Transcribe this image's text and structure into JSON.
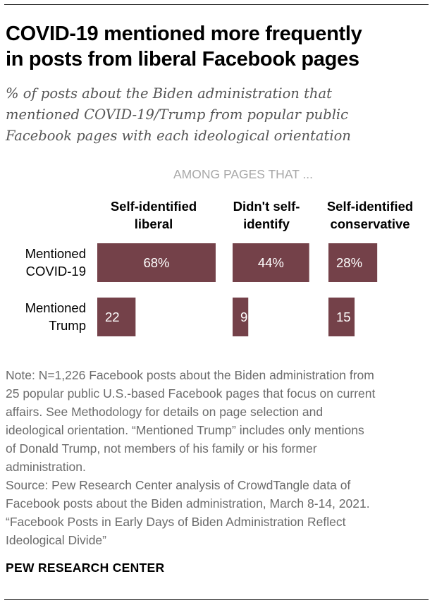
{
  "title_lines": [
    "COVID-19 mentioned more frequently",
    "in posts from liberal Facebook pages"
  ],
  "subtitle_lines": [
    "% of posts about the Biden administration that",
    "mentioned COVID-19/Trump from popular public",
    "Facebook pages with each ideological orientation"
  ],
  "chart_data": {
    "type": "bar",
    "orientation": "horizontal",
    "group_header": "AMONG PAGES THAT ...",
    "columns": [
      {
        "label": [
          "Self-identified",
          "liberal"
        ]
      },
      {
        "label": [
          "Didn't self-",
          "identify"
        ]
      },
      {
        "label": [
          "Self-identified",
          "conservative"
        ]
      }
    ],
    "rows": [
      {
        "label": [
          "Mentioned",
          "COVID-19"
        ],
        "values": [
          68,
          44,
          28
        ],
        "display": [
          "68%",
          "44%",
          "28%"
        ]
      },
      {
        "label": [
          "Mentioned",
          "Trump"
        ],
        "values": [
          22,
          9,
          15
        ],
        "display": [
          "22",
          "9",
          "15"
        ]
      }
    ],
    "bar_color": "#744149",
    "value_label_color": "#ffffff",
    "xlim": [
      0,
      100
    ]
  },
  "note": {
    "lines": [
      "Note: N=1,226 Facebook posts about the Biden administration from",
      "25 popular public U.S.-based Facebook pages that focus on current",
      "affairs. See Methodology for details on page selection and",
      "ideological orientation. “Mentioned Trump” includes only mentions",
      "of Donald Trump, not members of his family or his former",
      "administration."
    ],
    "source_lines": [
      "Source: Pew Research Center analysis of CrowdTangle data of",
      "Facebook posts about the Biden administration, March 8-14, 2021.",
      "“Facebook Posts in Early Days of Biden Administration Reflect",
      "Ideological Divide”"
    ]
  },
  "brand": "PEW RESEARCH CENTER"
}
